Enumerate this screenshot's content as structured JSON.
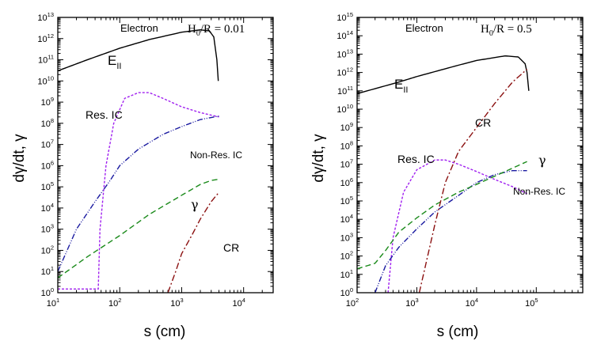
{
  "figure": {
    "ylabel": "dγ/dt, γ",
    "xlabel": "s (cm)"
  },
  "chart_data": [
    {
      "type": "line",
      "title": "Electron",
      "param_label": "H0/R = 0.01",
      "xlabel": "s (cm)",
      "ylabel": "dγ/dt, γ",
      "xscale": "log",
      "yscale": "log",
      "xlim": [
        10,
        30000
      ],
      "ylim": [
        1,
        10000000000000.0
      ],
      "x_ticks": [
        {
          "base": "10",
          "exp": "1"
        },
        {
          "base": "10",
          "exp": "2"
        },
        {
          "base": "10",
          "exp": "3"
        },
        {
          "base": "10",
          "exp": "4"
        }
      ],
      "y_ticks": [
        {
          "base": "10",
          "exp": "0"
        },
        {
          "base": "10",
          "exp": "1"
        },
        {
          "base": "10",
          "exp": "2"
        },
        {
          "base": "10",
          "exp": "3"
        },
        {
          "base": "10",
          "exp": "4"
        },
        {
          "base": "10",
          "exp": "5"
        },
        {
          "base": "10",
          "exp": "6"
        },
        {
          "base": "10",
          "exp": "7"
        },
        {
          "base": "10",
          "exp": "8"
        },
        {
          "base": "10",
          "exp": "9"
        },
        {
          "base": "10",
          "exp": "10"
        },
        {
          "base": "10",
          "exp": "11"
        },
        {
          "base": "10",
          "exp": "12"
        },
        {
          "base": "10",
          "exp": "13"
        }
      ],
      "series": [
        {
          "name": "E_II",
          "label_main": "E",
          "label_sub": "II",
          "color": "#000000",
          "dash": "",
          "points": [
            [
              10,
              30000000000.0
            ],
            [
              30,
              100000000000.0
            ],
            [
              100,
              350000000000.0
            ],
            [
              300,
              900000000000.0
            ],
            [
              1000,
              2000000000000.0
            ],
            [
              2000,
              2600000000000.0
            ],
            [
              2800,
              2300000000000.0
            ],
            [
              3300,
              1200000000000.0
            ],
            [
              3700,
              100000000000.0
            ],
            [
              3900,
              10000000000.0
            ]
          ]
        },
        {
          "name": "Res. IC",
          "color": "#a020f0",
          "dash": "3,2",
          "points": [
            [
              10,
              1.5
            ],
            [
              45,
              1.5
            ],
            [
              48,
              1000.0
            ],
            [
              60,
              1000000.0
            ],
            [
              80,
              100000000.0
            ],
            [
              120,
              1500000000.0
            ],
            [
              200,
              2800000000.0
            ],
            [
              300,
              2800000000.0
            ],
            [
              500,
              1500000000.0
            ],
            [
              1000,
              600000000.0
            ],
            [
              2000,
              320000000.0
            ],
            [
              4000,
              200000000.0
            ]
          ]
        },
        {
          "name": "Non-Res. IC",
          "color": "#1a1aa0",
          "dash": "7,2,1,2,1,2",
          "points": [
            [
              10,
              10
            ],
            [
              20,
              1000.0
            ],
            [
              40,
              20000.0
            ],
            [
              70,
              200000.0
            ],
            [
              100,
              1000000.0
            ],
            [
              200,
              6000000.0
            ],
            [
              500,
              30000000.0
            ],
            [
              1000,
              70000000.0
            ],
            [
              2000,
              150000000.0
            ],
            [
              4000,
              220000000.0
            ]
          ]
        },
        {
          "name": "γ",
          "color": "#1a8a1a",
          "dash": "7,4",
          "points": [
            [
              10,
              5
            ],
            [
              30,
              50
            ],
            [
              100,
              500
            ],
            [
              300,
              5000.0
            ],
            [
              1000,
              40000.0
            ],
            [
              2000,
              130000.0
            ],
            [
              3000,
              200000.0
            ],
            [
              4000,
              230000.0
            ]
          ]
        },
        {
          "name": "CR",
          "color": "#8b1010",
          "dash": "8,3,2,3",
          "points": [
            [
              600,
              1
            ],
            [
              800,
              10
            ],
            [
              1000,
              70
            ],
            [
              1500,
              600
            ],
            [
              2000,
              3000.0
            ],
            [
              3000,
              20000.0
            ],
            [
              4000,
              55000.0
            ]
          ]
        }
      ],
      "annotations": {
        "e_main": "E",
        "e_sub": "II",
        "res_ic": "Res. IC",
        "non_res_ic": "Non-Res. IC",
        "gamma": "γ",
        "cr": "CR"
      }
    },
    {
      "type": "line",
      "title": "Electron",
      "param_label": "H0/R = 0.5",
      "xlabel": "s (cm)",
      "ylabel": "dγ/dt, γ",
      "xscale": "log",
      "yscale": "log",
      "xlim": [
        100,
        600000
      ],
      "ylim": [
        1,
        1000000000000000.0
      ],
      "x_ticks": [
        {
          "base": "10",
          "exp": "2"
        },
        {
          "base": "10",
          "exp": "3"
        },
        {
          "base": "10",
          "exp": "4"
        },
        {
          "base": "10",
          "exp": "5"
        }
      ],
      "y_ticks": [
        {
          "base": "10",
          "exp": "0"
        },
        {
          "base": "10",
          "exp": "1"
        },
        {
          "base": "10",
          "exp": "2"
        },
        {
          "base": "10",
          "exp": "3"
        },
        {
          "base": "10",
          "exp": "4"
        },
        {
          "base": "10",
          "exp": "5"
        },
        {
          "base": "10",
          "exp": "6"
        },
        {
          "base": "10",
          "exp": "7"
        },
        {
          "base": "10",
          "exp": "8"
        },
        {
          "base": "10",
          "exp": "9"
        },
        {
          "base": "10",
          "exp": "10"
        },
        {
          "base": "10",
          "exp": "11"
        },
        {
          "base": "10",
          "exp": "12"
        },
        {
          "base": "10",
          "exp": "13"
        },
        {
          "base": "10",
          "exp": "14"
        },
        {
          "base": "10",
          "exp": "15"
        }
      ],
      "series": [
        {
          "name": "E_II",
          "label_main": "E",
          "label_sub": "II",
          "color": "#000000",
          "dash": "",
          "points": [
            [
              100,
              70000000000.0
            ],
            [
              500,
              300000000000.0
            ],
            [
              1000,
              600000000000.0
            ],
            [
              5000,
              2500000000000.0
            ],
            [
              10000,
              4500000000000.0
            ],
            [
              30000,
              8000000000000.0
            ],
            [
              50000,
              7000000000000.0
            ],
            [
              65000,
              3000000000000.0
            ],
            [
              70000,
              1000000000000.0
            ],
            [
              75000,
              100000000000.0
            ]
          ]
        },
        {
          "name": "Res. IC",
          "color": "#a020f0",
          "dash": "3,2",
          "points": [
            [
              330,
              1
            ],
            [
              400,
              1000.0
            ],
            [
              600,
              300000.0
            ],
            [
              1000,
              5000000.0
            ],
            [
              2000,
              17000000.0
            ],
            [
              3000,
              17000000.0
            ],
            [
              5000,
              10000000.0
            ],
            [
              10000,
              4000000.0
            ],
            [
              20000,
              1500000.0
            ],
            [
              40000,
              600000.0
            ],
            [
              70000,
              250000.0
            ]
          ]
        },
        {
          "name": "Non-Res. IC",
          "color": "#1a1aa0",
          "dash": "7,2,1,2,1,2",
          "points": [
            [
              200,
              1
            ],
            [
              300,
              30
            ],
            [
              500,
              300
            ],
            [
              1000,
              3000.0
            ],
            [
              2000,
              25000.0
            ],
            [
              5000,
              200000.0
            ],
            [
              10000,
              1000000.0
            ],
            [
              20000,
              2700000.0
            ],
            [
              40000,
              4500000.0
            ],
            [
              70000,
              4500000.0
            ]
          ]
        },
        {
          "name": "γ",
          "color": "#1a8a1a",
          "dash": "7,4",
          "points": [
            [
              100,
              20
            ],
            [
              200,
              40
            ],
            [
              300,
              200
            ],
            [
              500,
              2000.0
            ],
            [
              1000,
              12000.0
            ],
            [
              2000,
              60000.0
            ],
            [
              5000,
              300000.0
            ],
            [
              10000,
              800000.0
            ],
            [
              30000,
              4000000.0
            ],
            [
              70000,
              14000000.0
            ]
          ]
        },
        {
          "name": "CR",
          "color": "#8b1010",
          "dash": "8,3,2,3",
          "points": [
            [
              1100,
              1
            ],
            [
              2000,
              5000.0
            ],
            [
              3000,
              1000000.0
            ],
            [
              5000,
              50000000.0
            ],
            [
              10000,
              1000000000.0
            ],
            [
              20000,
              20000000000.0
            ],
            [
              40000,
              300000000000.0
            ],
            [
              70000,
              1500000000000.0
            ]
          ]
        }
      ],
      "annotations": {
        "e_main": "E",
        "e_sub": "II",
        "res_ic": "Res. IC",
        "non_res_ic": "Non-Res. IC",
        "gamma": "γ",
        "cr": "CR"
      }
    }
  ]
}
